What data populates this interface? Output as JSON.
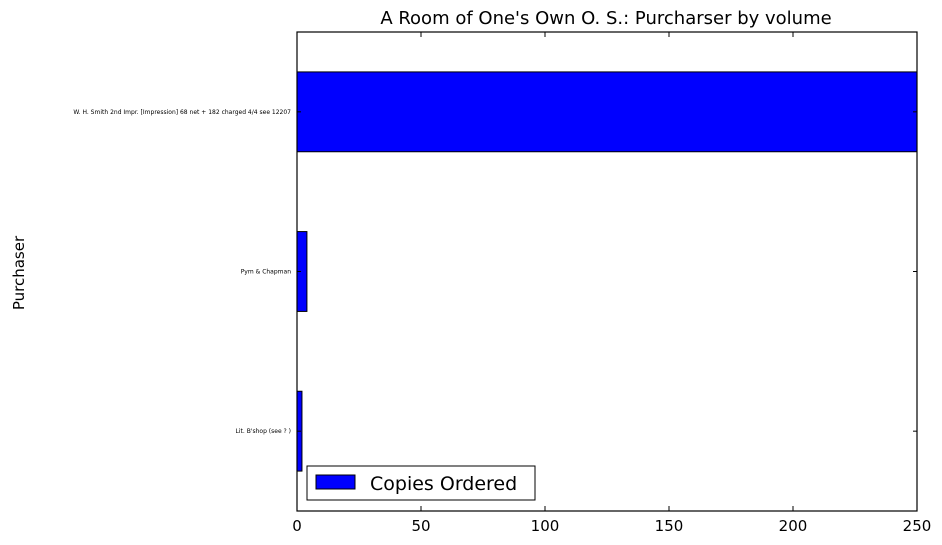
{
  "chart_data": {
    "type": "bar",
    "orientation": "horizontal",
    "title": "A Room of One's Own O. S.: Purcharser by volume",
    "xlabel": "",
    "ylabel": "Purchaser",
    "categories": [
      "Lit. B'shop (see ? )",
      "Pym & Chapman",
      "W. H. Smith 2nd Impr. [Impression] 68 net + 182 charged 4/4 see 12207"
    ],
    "series": [
      {
        "name": "Copies Ordered",
        "values": [
          2,
          4,
          250
        ],
        "color": "#0000ff"
      }
    ],
    "xlim": [
      0,
      250
    ],
    "xticks": [
      "0",
      "50",
      "100",
      "150",
      "200",
      "250"
    ],
    "grid": false,
    "legend_position": "lower-left"
  }
}
